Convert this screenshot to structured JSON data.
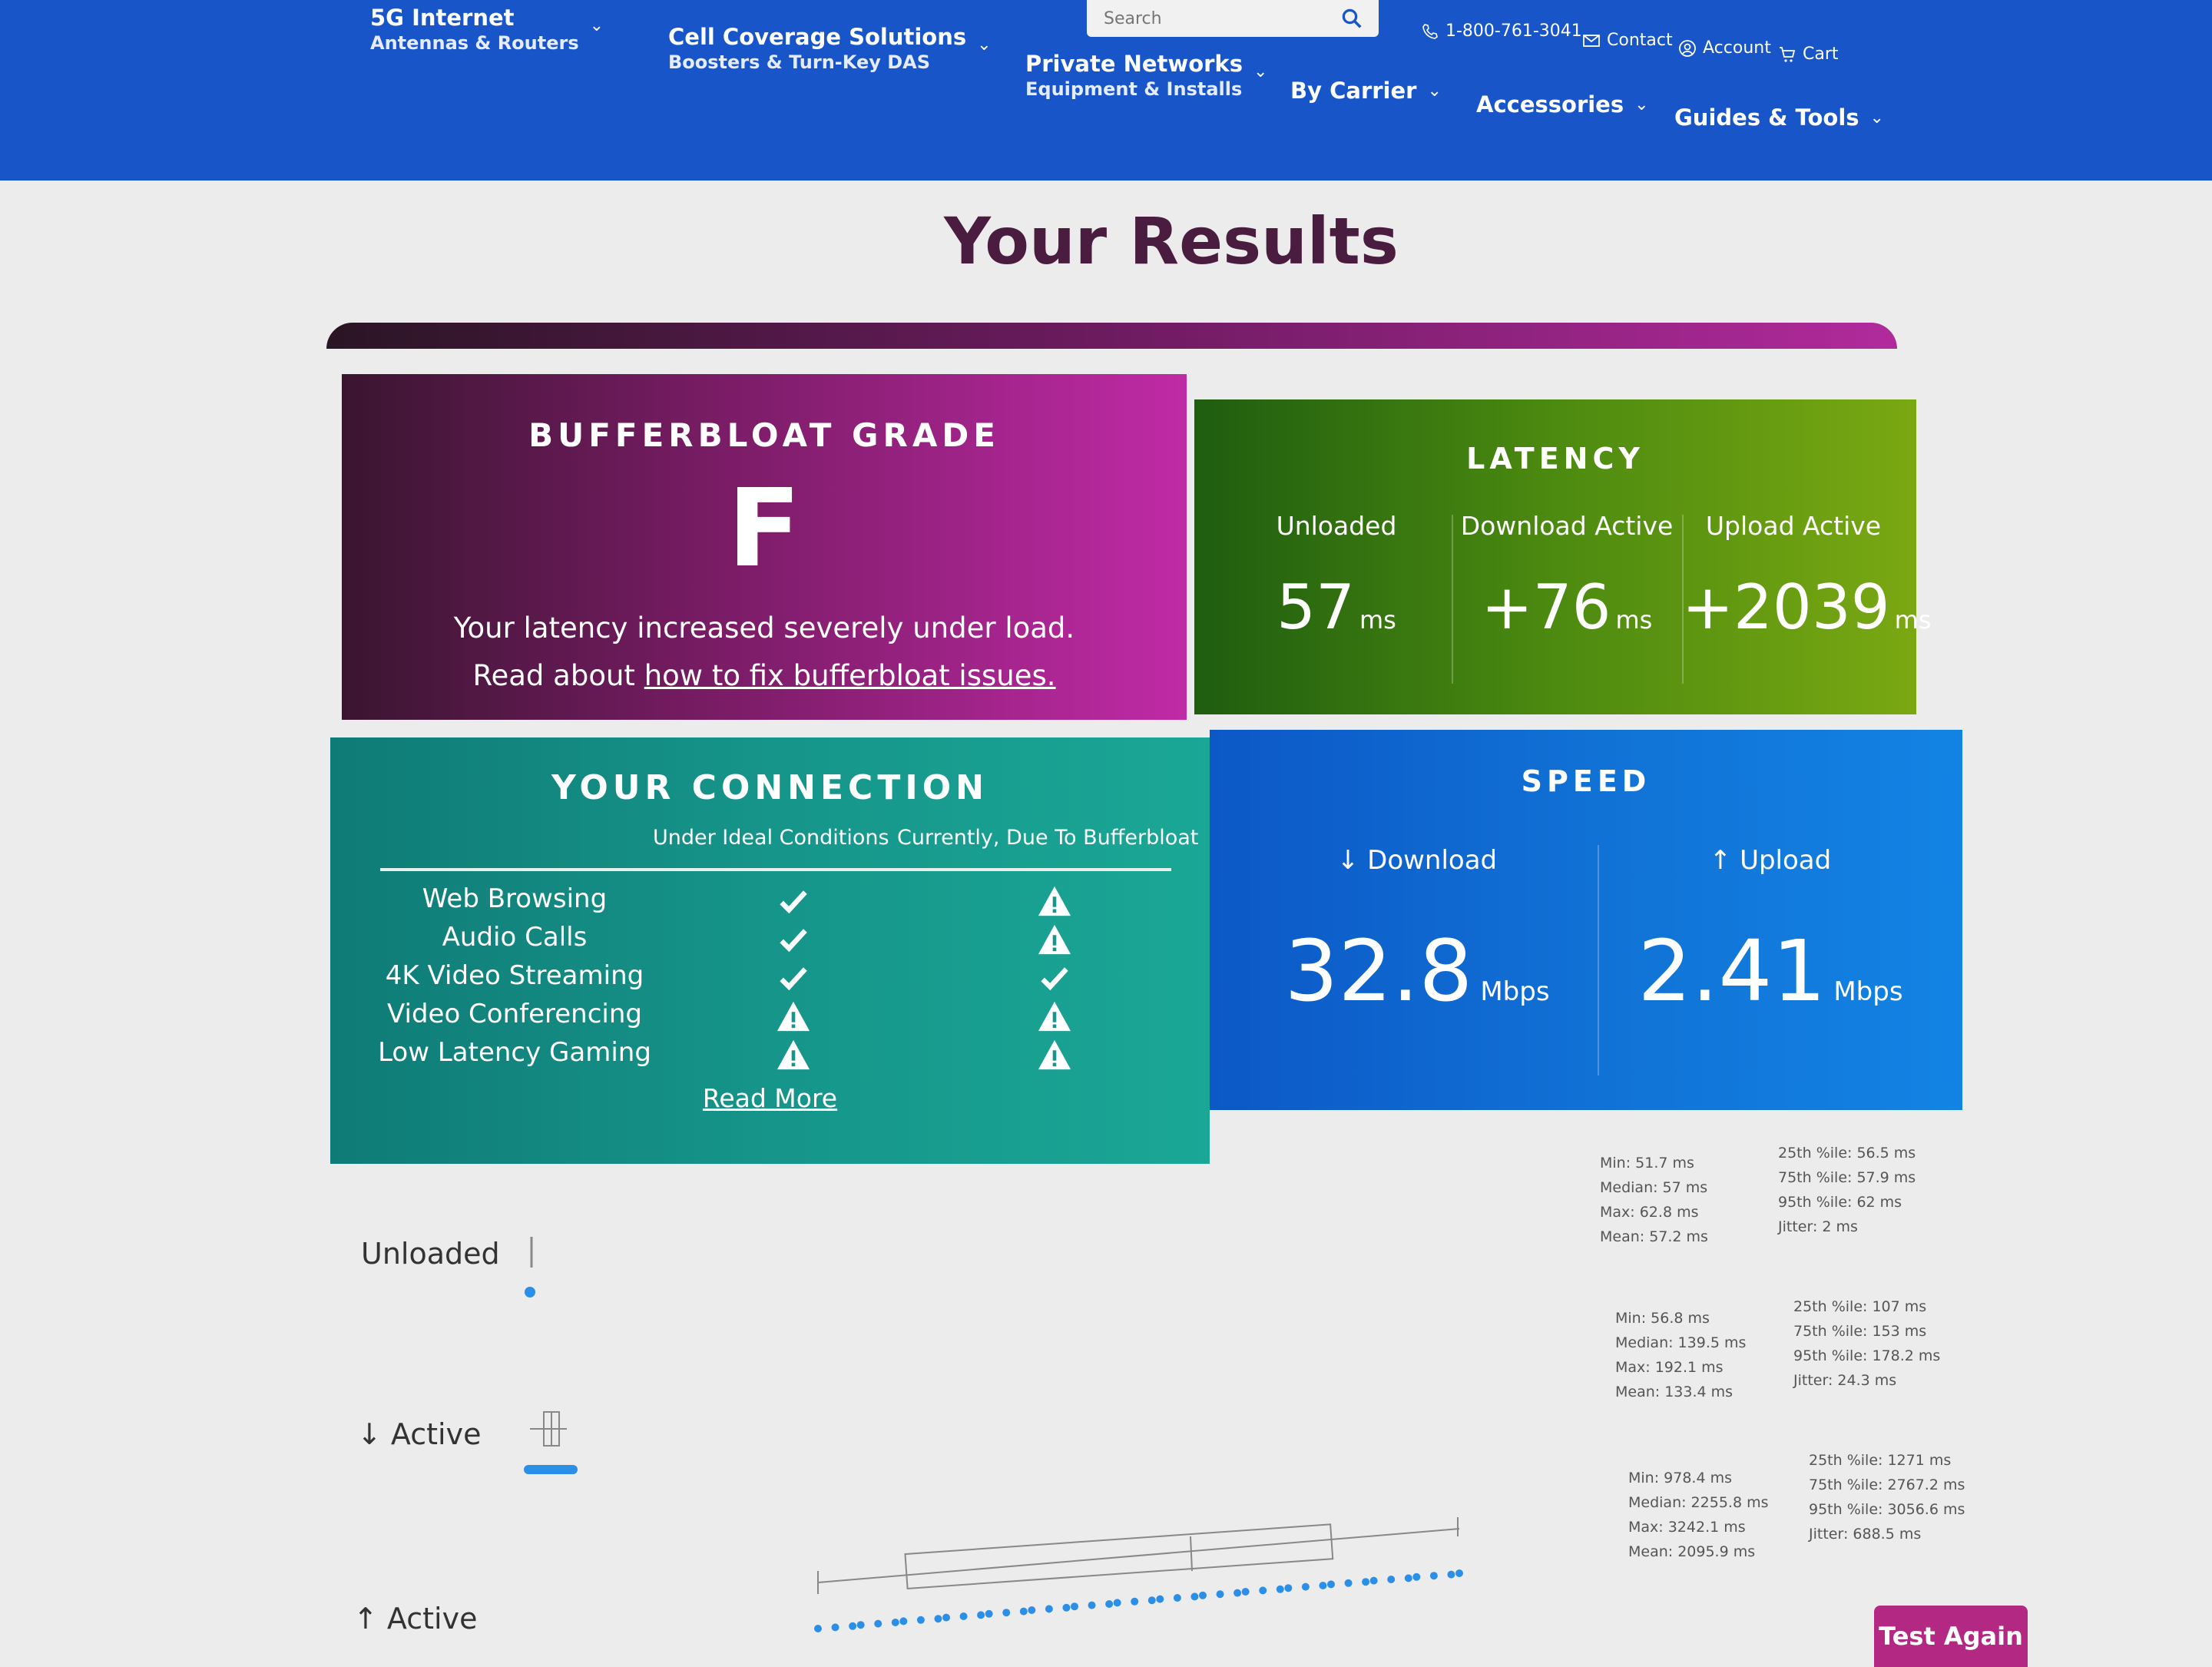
{
  "nav": {
    "items": [
      {
        "title": "5G Internet",
        "subtitle": "Antennas & Routers"
      },
      {
        "title": "Cell Coverage Solutions",
        "subtitle": "Boosters & Turn-Key DAS"
      },
      {
        "title": "Private Networks",
        "subtitle": "Equipment & Installs"
      },
      {
        "title": "By Carrier",
        "subtitle": ""
      },
      {
        "title": "Accessories",
        "subtitle": ""
      },
      {
        "title": "Guides & Tools",
        "subtitle": ""
      }
    ],
    "search_placeholder": "Search",
    "phone": "1-800-761-3041",
    "contact": "Contact",
    "account": "Account",
    "cart": "Cart"
  },
  "page_title": "Your Results",
  "grade": {
    "heading": "BUFFERBLOAT GRADE",
    "letter": "F",
    "message": "Your latency increased severely under load.",
    "read_prefix": "Read about ",
    "link": "how to fix bufferbloat issues."
  },
  "latency": {
    "heading": "LATENCY",
    "cols": [
      {
        "label": "Unloaded",
        "value": "57",
        "unit": "ms"
      },
      {
        "label": "Download Active",
        "value": "+76",
        "unit": "ms"
      },
      {
        "label": "Upload Active",
        "value": "+2039",
        "unit": "ms"
      }
    ]
  },
  "connection": {
    "heading": "YOUR CONNECTION",
    "col_ideal": "Under Ideal Conditions",
    "col_current": "Currently, Due To Bufferbloat",
    "rows": [
      {
        "label": "Web Browsing",
        "ideal": "check",
        "current": "warning"
      },
      {
        "label": "Audio Calls",
        "ideal": "check",
        "current": "warning"
      },
      {
        "label": "4K Video Streaming",
        "ideal": "check",
        "current": "check"
      },
      {
        "label": "Video Conferencing",
        "ideal": "warning",
        "current": "warning"
      },
      {
        "label": "Low Latency Gaming",
        "ideal": "warning",
        "current": "warning"
      }
    ],
    "read_more": "Read More"
  },
  "speed": {
    "heading": "SPEED",
    "download": {
      "label": "↓ Download",
      "value": "32.8",
      "unit": "Mbps"
    },
    "upload": {
      "label": "↑ Upload",
      "value": "2.41",
      "unit": "Mbps"
    }
  },
  "stats": {
    "unloaded": {
      "label": "Unloaded",
      "left": [
        "Min: 51.7 ms",
        "Median: 57 ms",
        "Max: 62.8 ms",
        "Mean: 57.2 ms"
      ],
      "right": [
        "25th %ile: 56.5 ms",
        "75th %ile: 57.9 ms",
        "95th %ile: 62 ms",
        "Jitter: 2 ms"
      ]
    },
    "down_active": {
      "label": "↓ Active",
      "left": [
        "Min: 56.8 ms",
        "Median: 139.5 ms",
        "Max: 192.1 ms",
        "Mean: 133.4 ms"
      ],
      "right": [
        "25th %ile: 107 ms",
        "75th %ile: 153 ms",
        "95th %ile: 178.2 ms",
        "Jitter: 24.3 ms"
      ]
    },
    "up_active": {
      "label": "↑ Active",
      "left": [
        "Min: 978.4 ms",
        "Median: 2255.8 ms",
        "Max: 3242.1 ms",
        "Mean: 2095.9 ms"
      ],
      "right": [
        "25th %ile: 1271 ms",
        "75th %ile: 2767.2 ms",
        "95th %ile: 3056.6 ms",
        "Jitter: 688.5 ms"
      ]
    }
  },
  "test_again": "Test Again",
  "colors": {
    "nav": "#1755c9",
    "grade": "#9c2388",
    "latency": "#4c8a10",
    "connection": "#16958a",
    "speed": "#1173d6",
    "button": "#b22883",
    "dots": "#2b8fe8"
  }
}
